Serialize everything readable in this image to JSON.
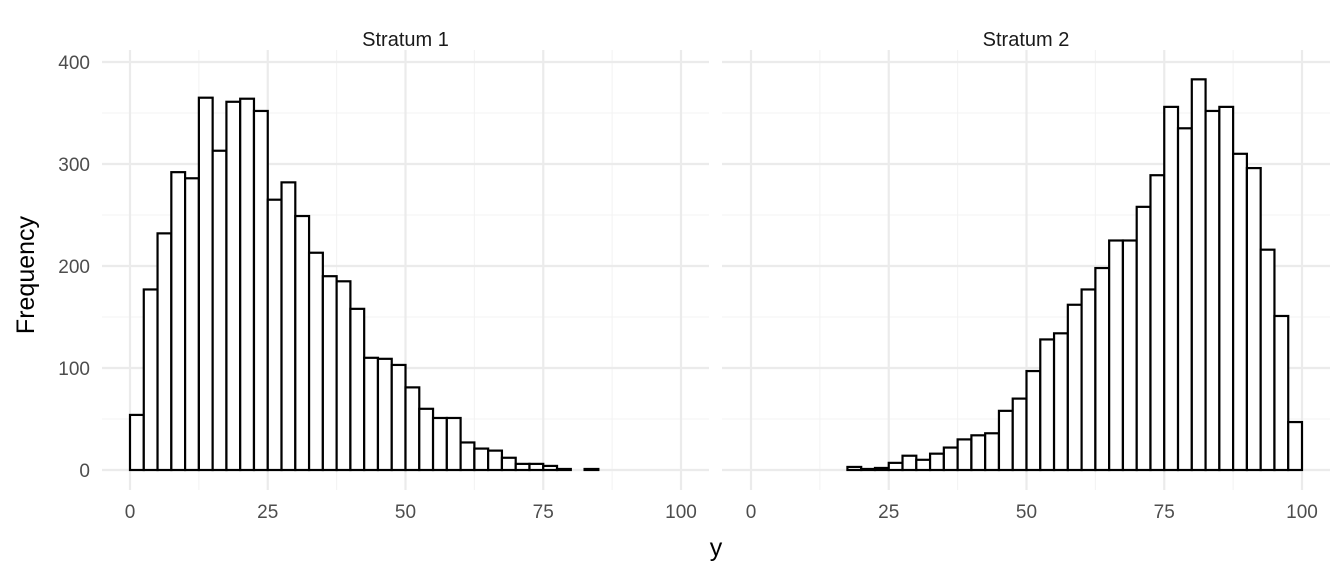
{
  "chart_data": {
    "type": "histogram",
    "xlabel": "y",
    "ylabel": "Frequency",
    "xlim": [
      0,
      100
    ],
    "ylim": [
      0,
      400
    ],
    "x_ticks": [
      "0",
      "25",
      "50",
      "75",
      "100"
    ],
    "y_ticks": [
      "0",
      "100",
      "200",
      "300",
      "400"
    ],
    "grid": true,
    "bin_width": 2.5,
    "bin_start": 0,
    "colors": {
      "bar_fill": "#ffffff",
      "bar_outline": "#000000",
      "grid": "#ebebeb"
    },
    "panels": [
      {
        "title": "Stratum 1",
        "counts": [
          54,
          177,
          232,
          292,
          286,
          365,
          313,
          361,
          364,
          352,
          265,
          282,
          249,
          213,
          190,
          185,
          158,
          110,
          109,
          103,
          81,
          60,
          51,
          51,
          27,
          21,
          19,
          12,
          6,
          6,
          4,
          1,
          0,
          1,
          0,
          0,
          0,
          0,
          0,
          0
        ]
      },
      {
        "title": "Stratum 2",
        "counts": [
          0,
          0,
          0,
          0,
          0,
          0,
          0,
          3,
          1,
          2,
          7,
          14,
          10,
          16,
          22,
          30,
          34,
          36,
          58,
          70,
          97,
          128,
          134,
          162,
          177,
          198,
          225,
          225,
          258,
          289,
          356,
          335,
          383,
          352,
          356,
          310,
          296,
          216,
          151,
          47
        ]
      }
    ]
  }
}
